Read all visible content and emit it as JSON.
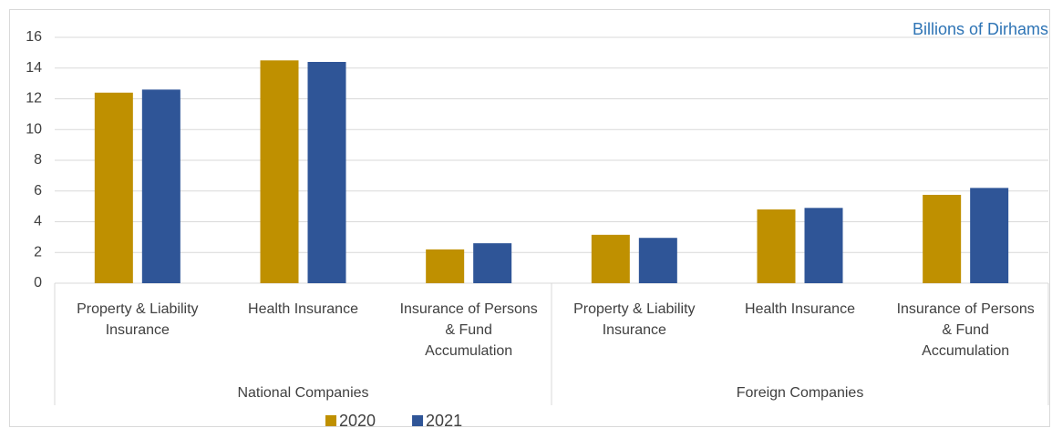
{
  "chart_data": {
    "type": "bar",
    "title": "Billions of Dirhams",
    "groups": [
      {
        "name": "National Companies",
        "categories": [
          [
            "Property & Liability",
            "Insurance"
          ],
          [
            "Health Insurance"
          ],
          [
            "Insurance of Persons",
            "& Fund",
            "Accumulation"
          ]
        ]
      },
      {
        "name": "Foreign Companies",
        "categories": [
          [
            "Property & Liability",
            "Insurance"
          ],
          [
            "Health Insurance"
          ],
          [
            "Insurance of Persons",
            "& Fund",
            "Accumulation"
          ]
        ]
      }
    ],
    "series": [
      {
        "name": "2020",
        "color": "#bf9000",
        "values": [
          12.4,
          14.5,
          2.2,
          3.15,
          4.8,
          5.75
        ]
      },
      {
        "name": "2021",
        "color": "#2f5597",
        "values": [
          12.6,
          14.4,
          2.6,
          2.95,
          4.9,
          6.2
        ]
      }
    ],
    "ylim": [
      0,
      16
    ],
    "yticks": [
      0,
      2,
      4,
      6,
      8,
      10,
      12,
      14,
      16
    ],
    "grid": true,
    "legend": "bottom"
  }
}
